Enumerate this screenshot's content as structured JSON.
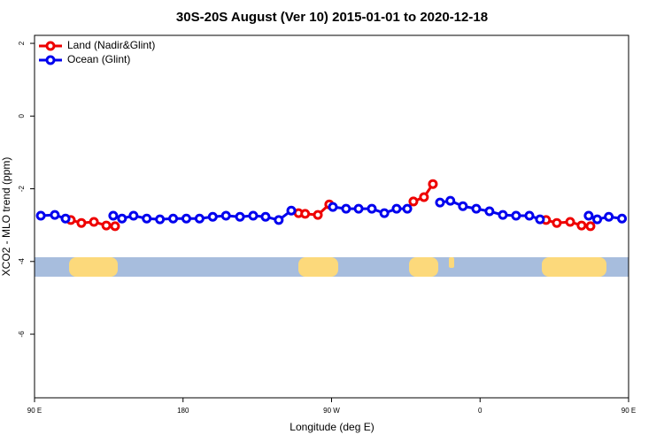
{
  "chart_data": {
    "type": "line",
    "title": "30S-20S August (Ver 10)   2015-01-01 to 2020-12-18",
    "x_label": "Longitude (deg E)",
    "y_label": "XCO2 - MLO trend (ppm)",
    "xlim": [
      90,
      450
    ],
    "ylim": [
      -7.75,
      2.22
    ],
    "xticks": [
      {
        "value": 90,
        "label": "90 E"
      },
      {
        "value": 180,
        "label": "180"
      },
      {
        "value": 270,
        "label": "90 W"
      },
      {
        "value": 360,
        "label": "0"
      },
      {
        "value": 450,
        "label": "90 E"
      }
    ],
    "yticks": [
      2,
      0,
      -2,
      -4,
      -6
    ],
    "legend": "top-left",
    "series": [
      {
        "name": "Land (Nadir&Glint)",
        "color": "#ee0000",
        "x": [
          112,
          118.4,
          126,
          133.5,
          138.8,
          195,
          250,
          254,
          261.7,
          268.6,
          295,
          319.6,
          326,
          331.4,
          365,
          400,
          406.5,
          414.6,
          421.5,
          426.9
        ],
        "values": [
          -2.86,
          -2.94,
          -2.91,
          -3.01,
          -3.03,
          null,
          -2.67,
          -2.69,
          -2.72,
          -2.43,
          null,
          -2.35,
          -2.23,
          -1.87,
          null,
          -2.86,
          -2.94,
          -2.91,
          -3.01,
          -3.03
        ]
      },
      {
        "name": "Ocean (Glint)",
        "color": "#0000ee",
        "x": [
          93.8,
          102.3,
          108.8,
          123,
          137.7,
          143,
          150,
          158,
          166,
          174,
          182,
          190,
          198,
          206,
          214.5,
          222.5,
          230,
          238,
          245.6,
          258,
          270.8,
          278.8,
          286.4,
          294.4,
          302,
          309.4,
          315.9,
          326,
          335.7,
          342,
          349.6,
          357.7,
          365.7,
          373.8,
          381.8,
          389.9,
          396.3,
          411,
          425.8,
          431,
          438,
          446
        ],
        "values": [
          -2.74,
          -2.72,
          -2.82,
          null,
          -2.74,
          -2.82,
          -2.74,
          -2.82,
          -2.84,
          -2.82,
          -2.82,
          -2.82,
          -2.77,
          -2.74,
          -2.77,
          -2.74,
          -2.77,
          -2.86,
          -2.6,
          null,
          -2.5,
          -2.55,
          -2.55,
          -2.55,
          -2.67,
          -2.55,
          -2.55,
          null,
          -2.38,
          -2.33,
          -2.48,
          -2.55,
          -2.62,
          -2.72,
          -2.74,
          -2.74,
          -2.84,
          null,
          -2.74,
          -2.84,
          -2.77,
          -2.82
        ]
      }
    ]
  }
}
